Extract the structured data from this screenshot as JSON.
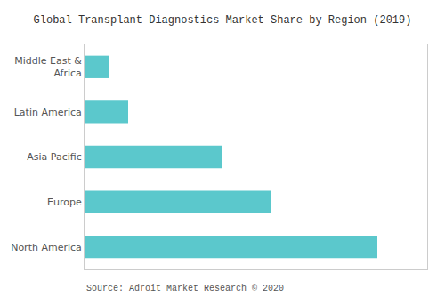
{
  "chart_data": {
    "type": "bar",
    "orientation": "horizontal",
    "title": "Global Transplant Diagnostics Market Share by Region (2019)",
    "categories": [
      "North America",
      "Europe",
      "Asia Pacific",
      "Latin America",
      "Middle East &\nAfrica"
    ],
    "values": [
      47,
      30,
      22,
      7,
      4
    ],
    "color": "#5BC8CC",
    "xlim": [
      0,
      55
    ],
    "grid": false,
    "tick_labels": "y",
    "annotations": [
      "Source: Adroit Market Research © 2020"
    ]
  }
}
